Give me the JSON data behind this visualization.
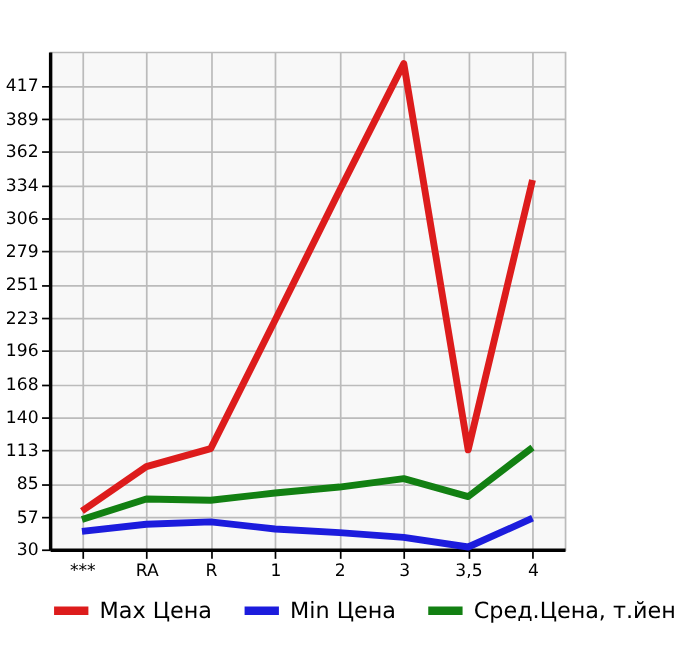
{
  "chart_data": {
    "type": "line",
    "categories": [
      "***",
      "RA",
      "R",
      "1",
      "2",
      "3",
      "3,5",
      "4"
    ],
    "series": [
      {
        "name": "Max Цена",
        "color": "#dd1c1c",
        "values": [
          62,
          99,
          114,
          221,
          329,
          435,
          113,
          338
        ]
      },
      {
        "name": "Min Цена",
        "color": "#1c1cdd",
        "values": [
          45,
          51,
          53,
          47,
          44,
          40,
          32,
          56
        ]
      },
      {
        "name": "Сред.Цена, т.йен",
        "color": "#128012",
        "values": [
          55,
          72,
          71,
          77,
          82,
          89,
          74,
          115
        ]
      }
    ],
    "ylim": [
      30,
      445
    ],
    "yticks": [
      30,
      57,
      85,
      113,
      140,
      168,
      196,
      223,
      251,
      279,
      306,
      334,
      362,
      389,
      417
    ],
    "grid": true,
    "legend": "bottom",
    "marker": "none",
    "line_style": "solid"
  }
}
